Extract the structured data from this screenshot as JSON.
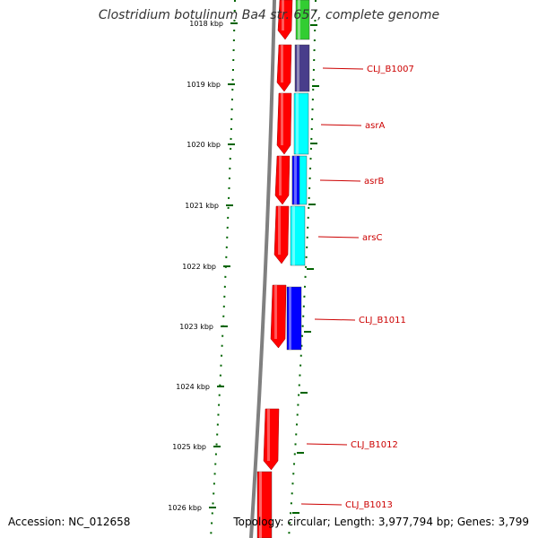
{
  "header": {
    "title": "Clostridium botulinum Ba4 str. 657, complete genome"
  },
  "footer": {
    "accession": "Accession: NC_012658",
    "summary": "Topology: circular; Length: 3,977,794 bp; Genes: 3,799"
  },
  "colors": {
    "backbone": "#808080",
    "forward_genes": "#ff0000",
    "cyan_genes": "#00ffff",
    "blue_genes": "#0000ff",
    "purple_genes": "#483d8b",
    "green_genes": "#32cd32",
    "tick": "#006400",
    "label": "#cc0000"
  },
  "scale": {
    "unit": "kbp",
    "ticks": [
      "1018 kbp",
      "1019 kbp",
      "1020 kbp",
      "1021 kbp",
      "1022 kbp",
      "1023 kbp",
      "1024 kbp",
      "1025 kbp",
      "1026 kbp"
    ]
  },
  "gene_labels": [
    "CLJ_B1007",
    "asrA",
    "asrB",
    "arsC",
    "CLJ_B1011",
    "CLJ_B1012",
    "CLJ_B1013"
  ]
}
